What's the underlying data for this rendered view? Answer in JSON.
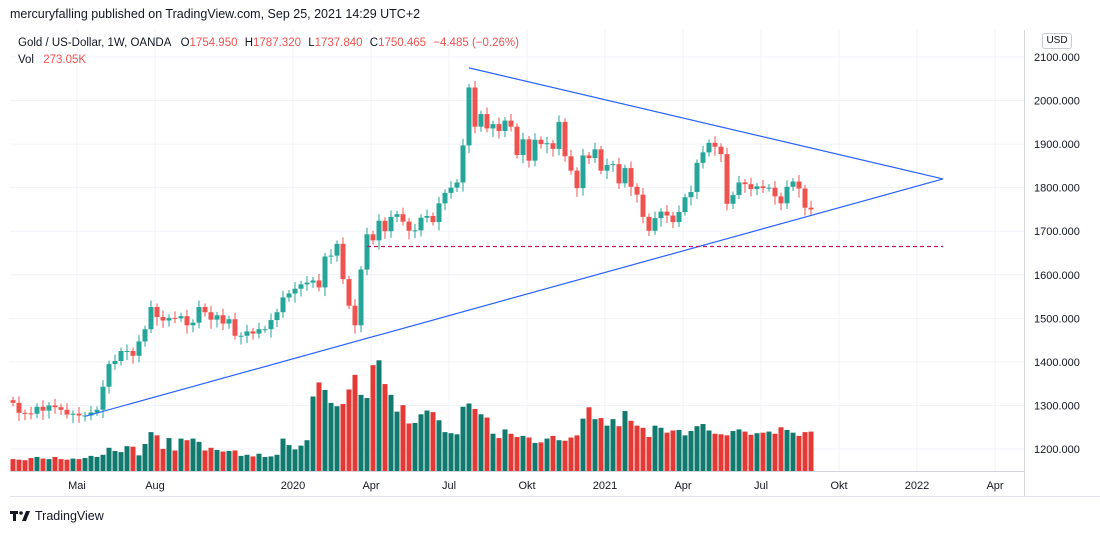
{
  "header": {
    "publisher_line": "mercuryfalling published on TradingView.com, Sep 25, 2021 14:29 UTC+2"
  },
  "legend": {
    "symbol": "Gold  / US-Dollar, 1W, OANDA",
    "open_key": "O",
    "open": "1754.950",
    "high_key": "H",
    "high": "1787.320",
    "low_key": "L",
    "low": "1737.840",
    "close_key": "C",
    "close": "1750.465",
    "change": "−4.485 (−0.26%)",
    "vol_label": "Vol",
    "vol_value": "273.05K"
  },
  "currency_badge": "USD",
  "brand": "TradingView",
  "colors": {
    "up": "#26a69a",
    "down": "#ef5350",
    "vol_up": "#117a6f",
    "vol_down": "#e53935",
    "trendline": "#2962ff",
    "support": "#c2185b",
    "grid": "#f0f3fa"
  },
  "chart_data": {
    "type": "candlestick",
    "title": "Gold / US-Dollar, 1W, OANDA",
    "y_axis": {
      "label": "USD",
      "ylim": [
        1150,
        2120
      ],
      "ticks": [
        "2100.000",
        "2000.000",
        "1900.000",
        "1800.000",
        "1700.000",
        "1600.000",
        "1500.000",
        "1400.000",
        "1300.000",
        "1200.000"
      ]
    },
    "x_axis": {
      "ticks": [
        "Mai",
        "Aug",
        "2020",
        "Apr",
        "Jul",
        "Okt",
        "2021",
        "Apr",
        "Jul",
        "Okt",
        "2022",
        "Apr"
      ]
    },
    "closes": [
      1306,
      1283,
      1282,
      1281,
      1297,
      1288,
      1300,
      1296,
      1290,
      1279,
      1281,
      1277,
      1277,
      1284,
      1290,
      1343,
      1395,
      1402,
      1425,
      1425,
      1414,
      1447,
      1475,
      1526,
      1503,
      1495,
      1501,
      1500,
      1505,
      1484,
      1490,
      1526,
      1514,
      1497,
      1507,
      1488,
      1498,
      1460,
      1460,
      1470,
      1465,
      1475,
      1475,
      1496,
      1514,
      1548,
      1557,
      1568,
      1578,
      1582,
      1587,
      1571,
      1642,
      1644,
      1671,
      1590,
      1529,
      1484,
      1612,
      1693,
      1679,
      1724,
      1700,
      1733,
      1739,
      1722,
      1701,
      1702,
      1731,
      1735,
      1721,
      1764,
      1788,
      1800,
      1812,
      1897,
      2030,
      1940,
      1969,
      1936,
      1946,
      1930,
      1954,
      1940,
      1875,
      1911,
      1862,
      1910,
      1900,
      1902,
      1889,
      1951,
      1872,
      1839,
      1799,
      1874,
      1868,
      1888,
      1839,
      1852,
      1854,
      1810,
      1845,
      1802,
      1784,
      1733,
      1701,
      1730,
      1745,
      1736,
      1721,
      1744,
      1778,
      1790,
      1857,
      1881,
      1903,
      1894,
      1877,
      1763,
      1783,
      1812,
      1808,
      1797,
      1803,
      1799,
      1800,
      1780,
      1764,
      1802,
      1814,
      1798,
      1754,
      1750
    ],
    "volumes": [
      2.2,
      2.1,
      2.0,
      2.4,
      2.6,
      2.3,
      2.2,
      2.6,
      2.2,
      2.1,
      2.3,
      2.2,
      2.4,
      2.8,
      2.6,
      3.0,
      4.3,
      3.7,
      3.5,
      4.6,
      4.5,
      2.9,
      5.0,
      7.2,
      6.6,
      4.1,
      6.1,
      3.8,
      6.0,
      5.7,
      6.0,
      5.4,
      3.8,
      4.3,
      3.9,
      3.6,
      3.7,
      3.8,
      2.8,
      3.0,
      2.7,
      3.2,
      2.6,
      2.7,
      3.0,
      6.0,
      4.8,
      4.0,
      4.7,
      5.7,
      13.8,
      16.4,
      15.0,
      12.6,
      12.0,
      12.4,
      15.1,
      17.8,
      14.1,
      13.5,
      19.6,
      20.5,
      16.1,
      14.1,
      11.0,
      12.2,
      8.8,
      8.9,
      10.5,
      11.2,
      10.9,
      9.4,
      7.2,
      7.0,
      6.8,
      11.9,
      12.5,
      11.5,
      10.5,
      9.9,
      6.9,
      6.1,
      7.7,
      6.9,
      6.3,
      6.5,
      6.2,
      5.2,
      5.3,
      6.0,
      6.5,
      5.7,
      5.6,
      6.2,
      6.6,
      9.7,
      11.8,
      9.6,
      9.8,
      8.4,
      9.6,
      8.3,
      11.1,
      9.3,
      8.4,
      8.0,
      6.3,
      8.4,
      8.0,
      7.1,
      7.5,
      7.6,
      6.6,
      7.4,
      8.3,
      8.7,
      7.5,
      6.9,
      6.8,
      6.6,
      7.4,
      7.7,
      7.3,
      6.7,
      7.0,
      7.1,
      7.3,
      6.9,
      8.1,
      7.6,
      7.1,
      6.5,
      7.2,
      7.3
    ]
  },
  "annotations": {
    "triangle_top": {
      "date_index": 76,
      "price": 2075
    },
    "triangle_bottom": {
      "date_index": 12,
      "price": 1275
    },
    "triangle_apex": {
      "date_index": 155,
      "price": 1820
    },
    "support_level": {
      "price": 1665,
      "from_index": 59,
      "to_index": 155
    }
  }
}
